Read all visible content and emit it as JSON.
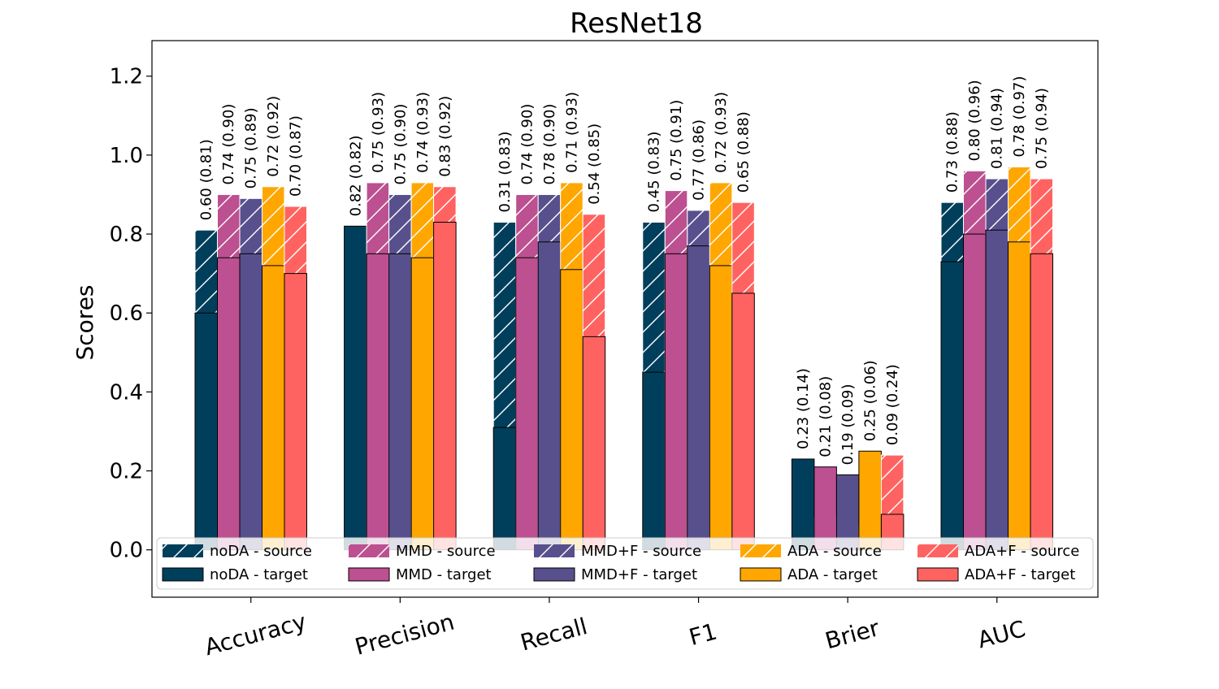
{
  "chart_data": {
    "type": "bar",
    "title": "ResNet18",
    "xlabel": "",
    "ylabel": "Scores",
    "ylim": [
      -0.12,
      1.29
    ],
    "yticks": [
      "0.0",
      "0.2",
      "0.4",
      "0.6",
      "0.8",
      "1.0",
      "1.2"
    ],
    "grid": false,
    "categories": [
      "Accuracy",
      "Precision",
      "Recall",
      "F1",
      "Brier",
      "AUC"
    ],
    "series": [
      {
        "name": "noDA",
        "color": "#003f5c",
        "target": [
          0.6,
          0.82,
          0.31,
          0.45,
          0.23,
          0.73
        ],
        "source": [
          0.81,
          0.82,
          0.83,
          0.83,
          0.14,
          0.88
        ],
        "labels": [
          "0.60 (0.81)",
          "0.82 (0.82)",
          "0.31 (0.83)",
          "0.45 (0.83)",
          "0.23 (0.14)",
          "0.73 (0.88)"
        ]
      },
      {
        "name": "MMD",
        "color": "#bc5090",
        "target": [
          0.74,
          0.75,
          0.74,
          0.75,
          0.21,
          0.8
        ],
        "source": [
          0.9,
          0.93,
          0.9,
          0.91,
          0.08,
          0.96
        ],
        "labels": [
          "0.74 (0.90)",
          "0.75 (0.93)",
          "0.74 (0.90)",
          "0.75 (0.91)",
          "0.21 (0.08)",
          "0.80 (0.96)"
        ]
      },
      {
        "name": "MMD+F",
        "color": "#58508d",
        "target": [
          0.75,
          0.75,
          0.78,
          0.77,
          0.19,
          0.81
        ],
        "source": [
          0.89,
          0.9,
          0.9,
          0.86,
          0.09,
          0.94
        ],
        "labels": [
          "0.75 (0.89)",
          "0.75 (0.90)",
          "0.78 (0.90)",
          "0.77 (0.86)",
          "0.19 (0.09)",
          "0.81 (0.94)"
        ]
      },
      {
        "name": "ADA",
        "color": "#ffa600",
        "target": [
          0.72,
          0.74,
          0.71,
          0.72,
          0.25,
          0.78
        ],
        "source": [
          0.92,
          0.93,
          0.93,
          0.93,
          0.06,
          0.97
        ],
        "labels": [
          "0.72 (0.92)",
          "0.74 (0.93)",
          "0.71 (0.93)",
          "0.72 (0.93)",
          "0.25 (0.06)",
          "0.78 (0.97)"
        ]
      },
      {
        "name": "ADA+F",
        "color": "#ff6361",
        "target": [
          0.7,
          0.83,
          0.54,
          0.65,
          0.09,
          0.75
        ],
        "source": [
          0.87,
          0.92,
          0.85,
          0.88,
          0.24,
          0.94
        ],
        "labels": [
          "0.70 (0.87)",
          "0.83 (0.92)",
          "0.54 (0.85)",
          "0.65 (0.88)",
          "0.09 (0.24)",
          "0.75 (0.94)"
        ]
      }
    ],
    "legend": {
      "placement": "lower-center",
      "entries": [
        "noDA - source",
        "MMD - source",
        "MMD+F - source",
        "ADA - source",
        "ADA+F - source",
        "noDA - target",
        "MMD - target",
        "MMD+F - target",
        "ADA - target",
        "ADA+F - target"
      ]
    }
  }
}
